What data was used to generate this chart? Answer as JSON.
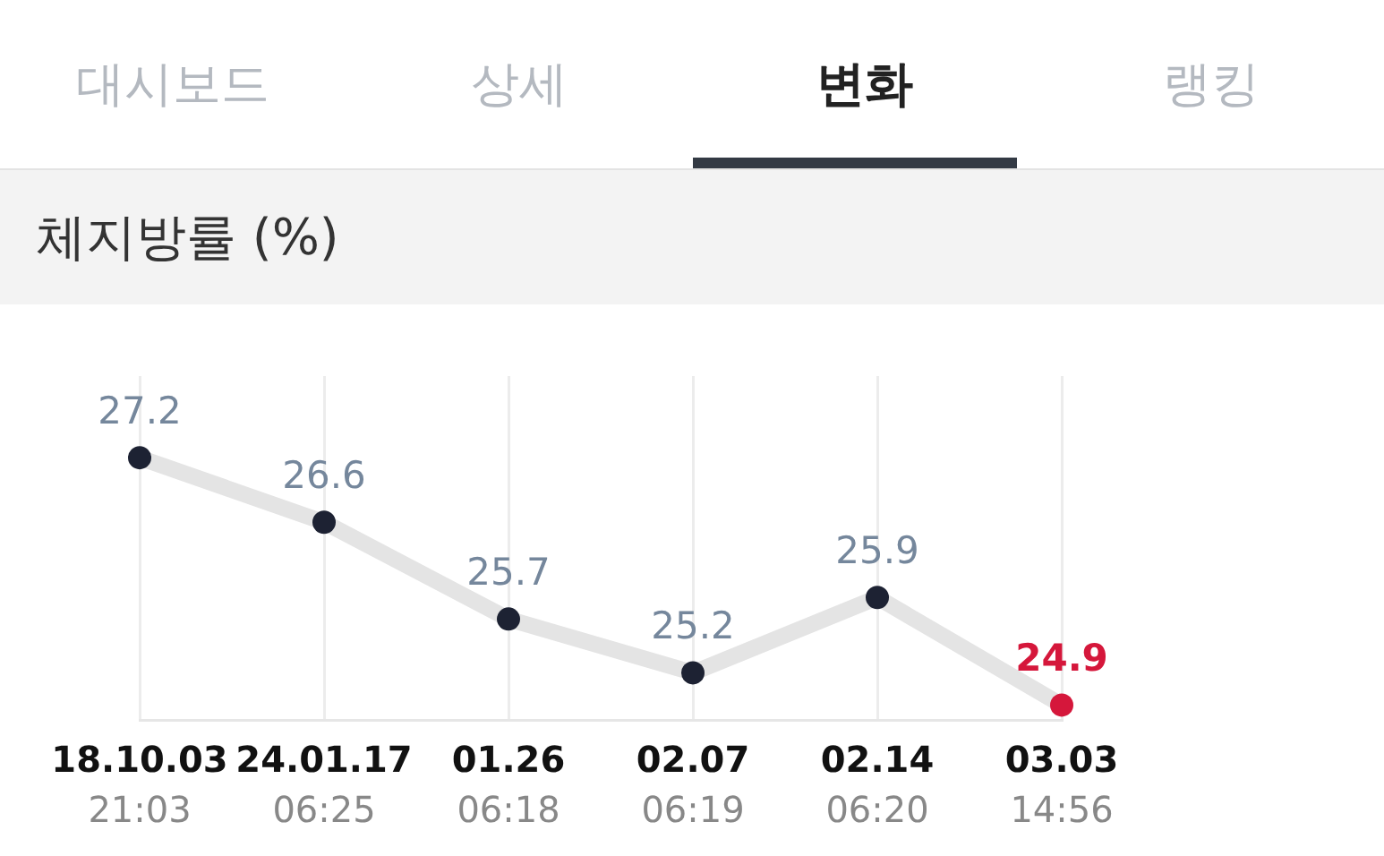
{
  "chart_data": {
    "type": "line",
    "title": "체지방률 (%)",
    "annotations": [
      "대시보드",
      "상세",
      "변화",
      "랭킹"
    ],
    "categories": [
      "18.10.03 21:03",
      "24.01.17 06:25",
      "01.26 06:18",
      "02.07 06:19",
      "02.14 06:20",
      "03.03 14:56"
    ],
    "series": [
      {
        "color": "#e4e4e4",
        "colors": [
          "#1d2233",
          "#1d2233",
          "#1d2233",
          "#1d2233",
          "#1d2233",
          "#d5173b"
        ],
        "values": [
          27.2,
          26.6,
          25.7,
          25.2,
          25.9,
          24.9
        ]
      }
    ],
    "data_labels": true,
    "grid": "x",
    "marker": "circle",
    "line_style": "solid",
    "legend": false
  }
}
